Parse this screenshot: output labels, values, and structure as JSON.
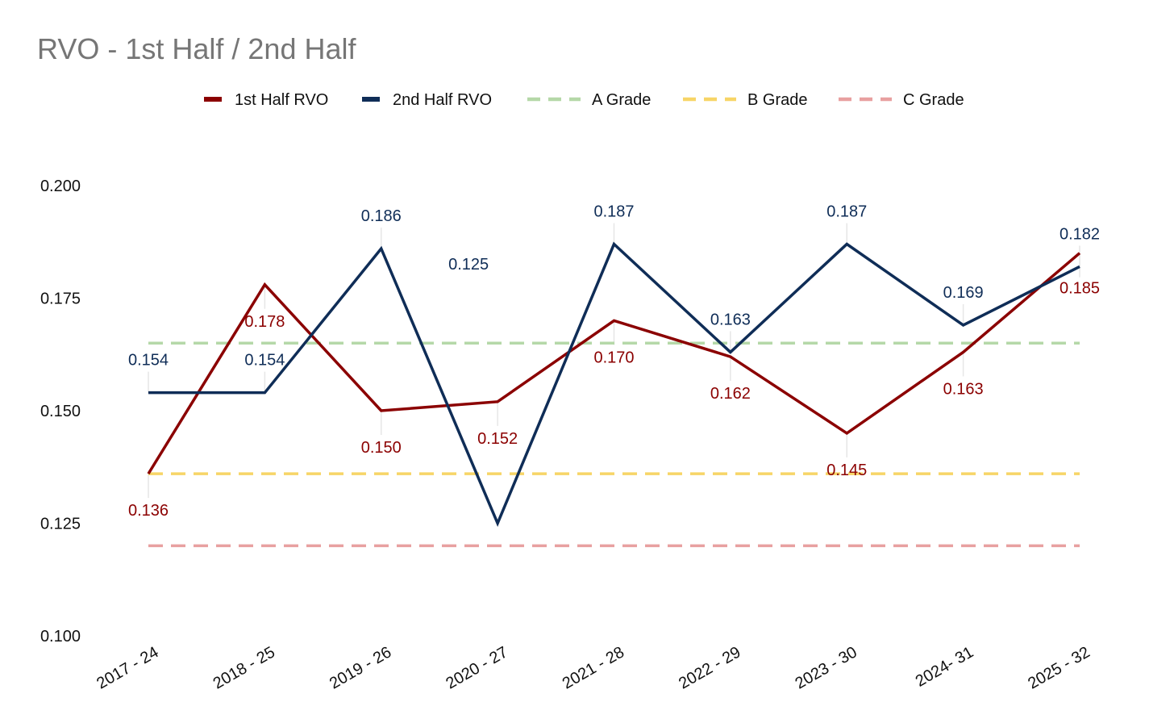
{
  "chart_data": {
    "type": "line",
    "title": "RVO - 1st Half / 2nd Half",
    "xlabel": "",
    "ylabel": "",
    "categories": [
      "2017 - 24",
      "2018 - 25",
      "2019 - 26",
      "2020 - 27",
      "2021 - 28",
      "2022 - 29",
      "2023 - 30",
      "2024- 31",
      "2025 - 32"
    ],
    "ylim": [
      0.1,
      0.2
    ],
    "yticks": [
      "0.100",
      "0.125",
      "0.150",
      "0.175",
      "0.200"
    ],
    "grid": false,
    "legend_position": "top",
    "series": [
      {
        "name": "1st Half RVO",
        "color": "#8b0000",
        "values": [
          0.136,
          0.178,
          0.15,
          0.152,
          0.17,
          0.162,
          0.145,
          0.163,
          0.185
        ],
        "labels": [
          "0.136",
          "0.178",
          "0.150",
          "0.152",
          "0.170",
          "0.162",
          "0.145",
          "0.163",
          "0.185"
        ]
      },
      {
        "name": "2nd Half RVO",
        "color": "#0f2d57",
        "values": [
          0.154,
          0.154,
          0.186,
          0.125,
          0.187,
          0.163,
          0.187,
          0.169,
          0.182
        ],
        "labels": [
          "0.154",
          "0.154",
          "0.186",
          "0.125",
          "0.187",
          "0.163",
          "0.187",
          "0.169",
          "0.182"
        ]
      }
    ],
    "reference_lines": [
      {
        "name": "A Grade",
        "value": 0.165,
        "color": "#b5d8a8"
      },
      {
        "name": "B Grade",
        "value": 0.136,
        "color": "#f7d567"
      },
      {
        "name": "C Grade",
        "value": 0.12,
        "color": "#e8a0a0"
      }
    ]
  }
}
